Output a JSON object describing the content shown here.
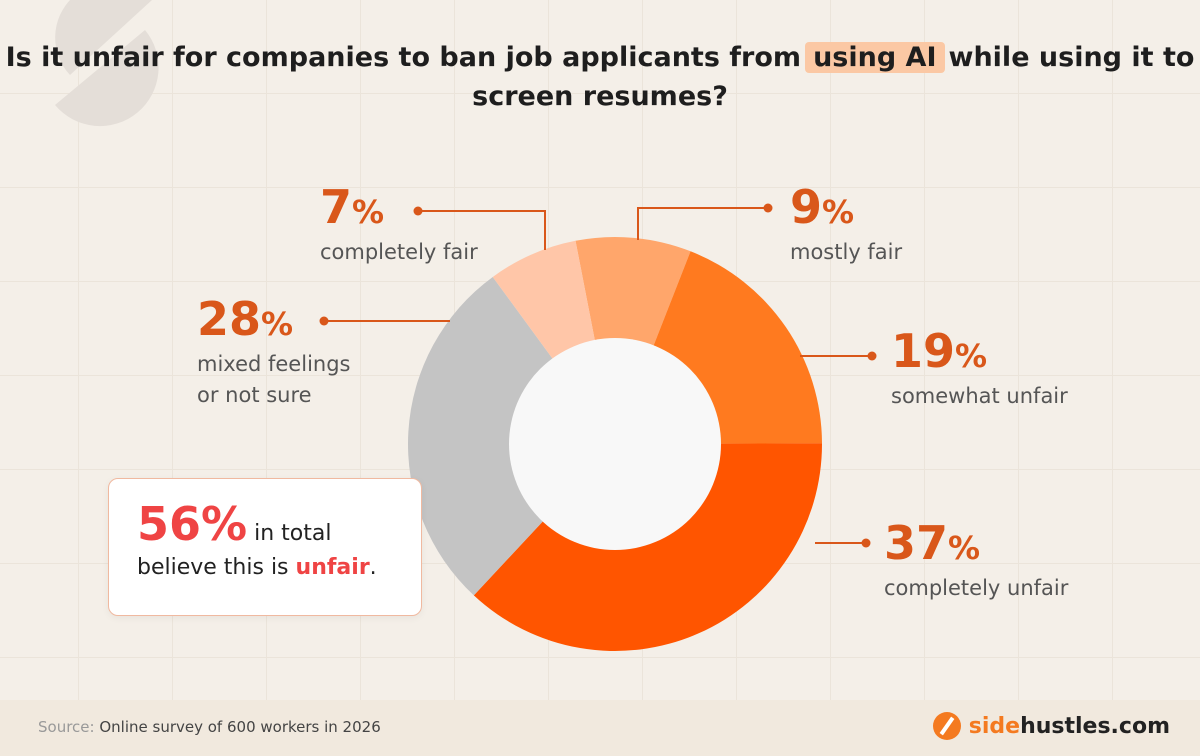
{
  "title": {
    "before": "Is it unfair for companies to ban job applicants from",
    "highlight": "using AI",
    "after": "while using it to screen resumes?"
  },
  "chart_data": {
    "type": "pie",
    "donut": true,
    "start_angle_deg": -11,
    "slices": [
      {
        "label": "mostly fair",
        "value": 9,
        "color": "#ffa66b"
      },
      {
        "label": "somewhat unfair",
        "value": 19,
        "color": "#ff7a1f"
      },
      {
        "label": "completely unfair",
        "value": 37,
        "color": "#ff5500"
      },
      {
        "label": "mixed feelings or not sure",
        "value": 28,
        "color": "#c4c4c4"
      },
      {
        "label": "completely fair",
        "value": 7,
        "color": "#ffc6a8"
      }
    ]
  },
  "labels": {
    "completely_fair": {
      "pct": "7",
      "cap": "completely fair"
    },
    "mostly_fair": {
      "pct": "9",
      "cap": "mostly fair"
    },
    "mixed": {
      "pct": "28",
      "cap1": "mixed feelings",
      "cap2": "or not sure"
    },
    "somewhat_unfair": {
      "pct": "19",
      "cap": "somewhat unfair"
    },
    "completely_unfair": {
      "pct": "37",
      "cap": "completely unfair"
    },
    "percent_sign": "%"
  },
  "callout": {
    "pct": "56%",
    "text1": "in total",
    "text2": "believe this is",
    "highlight": "unfair",
    "end": "."
  },
  "footer": {
    "source_label": "Source:",
    "source_text": "Online survey of 600 workers in 2026",
    "logo_accent": "side",
    "logo_rest": "hustles.com"
  }
}
